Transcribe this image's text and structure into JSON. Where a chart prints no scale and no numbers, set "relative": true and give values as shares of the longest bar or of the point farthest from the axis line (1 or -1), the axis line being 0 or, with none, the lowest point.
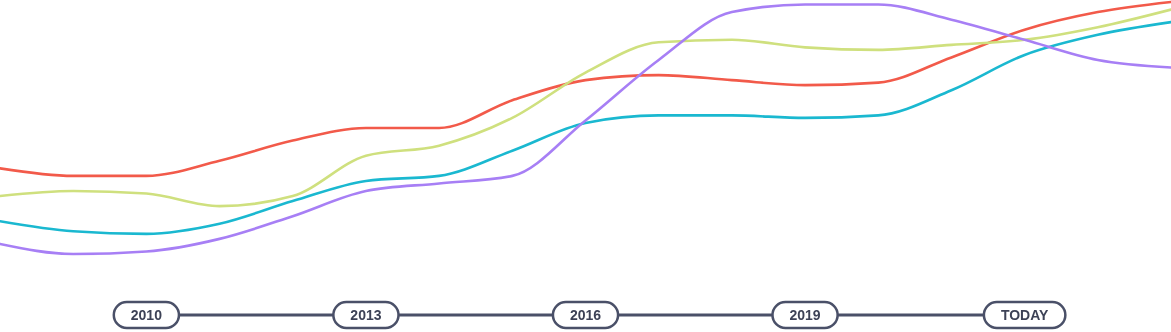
{
  "chart_data": {
    "type": "line",
    "relative": true,
    "marker": "none",
    "line_style": "solid",
    "categories": [
      null,
      null,
      "2010",
      null,
      null,
      "2013",
      null,
      null,
      "2016",
      null,
      null,
      "2019",
      null,
      null,
      "TODAY",
      null,
      null
    ],
    "series": [
      {
        "color": "#f25a4a",
        "values": [
          0.34,
          0.31,
          0.31,
          0.37,
          0.45,
          0.5,
          0.5,
          0.61,
          0.69,
          0.71,
          0.69,
          0.67,
          0.68,
          0.78,
          0.89,
          0.96,
          1
        ]
      },
      {
        "color": "#cfe07e",
        "values": [
          0.23,
          0.25,
          0.24,
          0.19,
          0.23,
          0.39,
          0.43,
          0.54,
          0.72,
          0.84,
          0.85,
          0.82,
          0.81,
          0.83,
          0.85,
          0.9,
          0.97
        ]
      },
      {
        "color": "#1ab8d0",
        "values": [
          0.13,
          0.09,
          0.08,
          0.12,
          0.21,
          0.29,
          0.31,
          0.41,
          0.52,
          0.55,
          0.55,
          0.54,
          0.55,
          0.65,
          0.79,
          0.87,
          0.92
        ]
      },
      {
        "color": "#a77ff5",
        "values": [
          0.04,
          0,
          0.01,
          0.06,
          0.15,
          0.25,
          0.28,
          0.31,
          0.53,
          0.77,
          0.96,
          0.99,
          0.99,
          0.93,
          0.85,
          0.77,
          0.74
        ]
      }
    ]
  }
}
